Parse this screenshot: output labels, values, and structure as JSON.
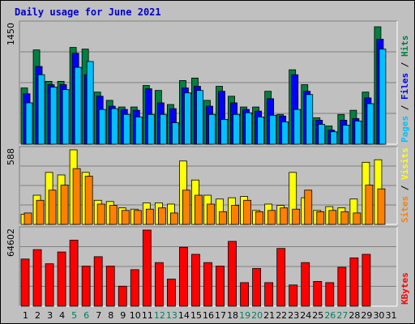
{
  "title": "Daily usage for June 2021",
  "chart_data": [
    {
      "type": "bar",
      "panel": "hits-files-pages",
      "ymax_label": "1450",
      "ylim": [
        0,
        1450
      ],
      "categories": [
        "1",
        "2",
        "3",
        "4",
        "5",
        "6",
        "7",
        "8",
        "9",
        "10",
        "11",
        "12",
        "13",
        "14",
        "15",
        "16",
        "17",
        "18",
        "19",
        "20",
        "21",
        "22",
        "23",
        "24",
        "25",
        "26",
        "27",
        "28",
        "29",
        "30",
        "31"
      ],
      "weekend_days": [
        "5",
        "6",
        "12",
        "13",
        "19",
        "20",
        "26",
        "27"
      ],
      "series": [
        {
          "name": "Hits",
          "color": "#008040",
          "values": [
            680,
            1140,
            760,
            760,
            1170,
            1150,
            630,
            530,
            450,
            450,
            710,
            650,
            480,
            770,
            800,
            530,
            700,
            580,
            450,
            450,
            640,
            360,
            900,
            720,
            320,
            220,
            360,
            410,
            630,
            1420,
            0
          ]
        },
        {
          "name": "Files",
          "color": "#0000ff",
          "values": [
            610,
            940,
            720,
            720,
            1100,
            840,
            580,
            460,
            420,
            410,
            670,
            500,
            430,
            680,
            700,
            460,
            640,
            500,
            420,
            400,
            550,
            340,
            840,
            640,
            290,
            170,
            290,
            310,
            560,
            1270,
            0
          ]
        },
        {
          "name": "Pages",
          "color": "#00c0ff",
          "values": [
            500,
            840,
            690,
            660,
            930,
            1000,
            420,
            430,
            360,
            330,
            360,
            360,
            260,
            620,
            650,
            360,
            300,
            360,
            380,
            330,
            350,
            270,
            420,
            600,
            240,
            150,
            230,
            280,
            490,
            1150,
            0
          ]
        }
      ],
      "side_label": [
        "Pages",
        "Files",
        "Hits"
      ]
    },
    {
      "type": "bar",
      "panel": "visits-sites",
      "ymax_label": "588",
      "ylim": [
        0,
        588
      ],
      "categories": [
        "1",
        "2",
        "3",
        "4",
        "5",
        "6",
        "7",
        "8",
        "9",
        "10",
        "11",
        "12",
        "13",
        "14",
        "15",
        "16",
        "17",
        "18",
        "19",
        "20",
        "21",
        "22",
        "23",
        "24",
        "25",
        "26",
        "27",
        "28",
        "29",
        "30",
        "31"
      ],
      "series": [
        {
          "name": "Visits",
          "color": "#ffff00",
          "values": [
            80,
            230,
            410,
            390,
            588,
            410,
            190,
            180,
            130,
            120,
            170,
            170,
            160,
            500,
            350,
            230,
            200,
            210,
            220,
            110,
            160,
            150,
            410,
            210,
            110,
            140,
            130,
            200,
            490,
            510,
            0
          ]
        },
        {
          "name": "Sites",
          "color": "#ff8000",
          "values": [
            90,
            190,
            270,
            310,
            440,
            380,
            160,
            150,
            110,
            110,
            120,
            130,
            90,
            270,
            230,
            160,
            100,
            150,
            190,
            100,
            110,
            130,
            120,
            270,
            100,
            110,
            100,
            90,
            310,
            280,
            0
          ]
        }
      ],
      "side_label": [
        "Sites",
        "Visits"
      ]
    },
    {
      "type": "bar",
      "panel": "kbytes",
      "ymax_label": "64602",
      "ylim": [
        0,
        64602
      ],
      "categories": [
        "1",
        "2",
        "3",
        "4",
        "5",
        "6",
        "7",
        "8",
        "9",
        "10",
        "11",
        "12",
        "13",
        "14",
        "15",
        "16",
        "17",
        "18",
        "19",
        "20",
        "21",
        "22",
        "23",
        "24",
        "25",
        "26",
        "27",
        "28",
        "29",
        "30",
        "31"
      ],
      "series": [
        {
          "name": "KBytes",
          "color": "#ff0000",
          "values": [
            40000,
            48000,
            36000,
            46000,
            56000,
            34000,
            42000,
            34000,
            17000,
            31000,
            64602,
            37000,
            23000,
            50000,
            44000,
            37000,
            34000,
            55000,
            20000,
            32000,
            20000,
            49000,
            18000,
            37000,
            21000,
            20000,
            33000,
            41000,
            44000,
            0,
            0
          ]
        }
      ],
      "side_label": [
        "KBytes"
      ]
    }
  ],
  "colors": {
    "background": "#c0c0c0",
    "panel_bg": "#c0c0c0",
    "weekday_label": "#000000",
    "weekend_label": "#00805c",
    "title": "#0000cc"
  }
}
